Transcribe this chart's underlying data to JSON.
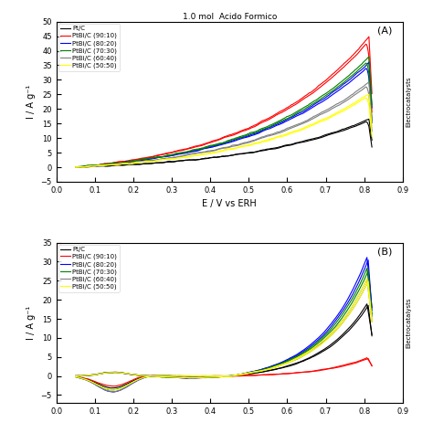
{
  "title_A": "1.0 mol  Acido Formico",
  "panel_A_label": "(A)",
  "panel_B_label": "(B)",
  "xlabel_A": "E / V vs ERH",
  "xlabel_B": "",
  "ylabel_A": "I / A g⁻¹",
  "ylabel_B": "I / A g⁻¹",
  "legend_labels": [
    "Pt/C",
    "PtBi/C (90:10)",
    "PtBi/C (80:20)",
    "PtBi/C (70:30)",
    "PtBi/C (60:40)",
    "PtBi/C (50:50)"
  ],
  "colors_A": [
    "black",
    "red",
    "blue",
    "green",
    "gray",
    "yellow"
  ],
  "colors_B": [
    "black",
    "red",
    "blue",
    "green",
    "gray",
    "yellow"
  ],
  "xlim_A": [
    0.0,
    0.9
  ],
  "ylim_A": [
    -5,
    50
  ],
  "xlim_B": [
    0.0,
    0.9
  ],
  "ylim_B": [
    -7,
    35
  ],
  "yticks_A": [
    -5,
    0,
    5,
    10,
    15,
    20,
    25,
    30,
    35,
    40,
    45,
    50
  ],
  "yticks_B": [
    -5,
    0,
    5,
    10,
    15,
    20,
    25,
    30,
    35
  ],
  "xticks_A": [
    0.0,
    0.1,
    0.2,
    0.3,
    0.4,
    0.5,
    0.6,
    0.7,
    0.8,
    0.9
  ],
  "xticks_B": [
    0.0,
    0.1,
    0.2,
    0.3,
    0.4,
    0.5,
    0.6,
    0.7,
    0.8,
    0.9
  ],
  "A_end_vals": [
    17,
    46,
    37,
    39,
    30,
    26
  ],
  "B_fwd_end": [
    20,
    5,
    33,
    30,
    27,
    27
  ],
  "B_neg_dip": [
    -3.5,
    -3.0,
    -4.5,
    -4.0,
    -4.5,
    -4.0
  ]
}
